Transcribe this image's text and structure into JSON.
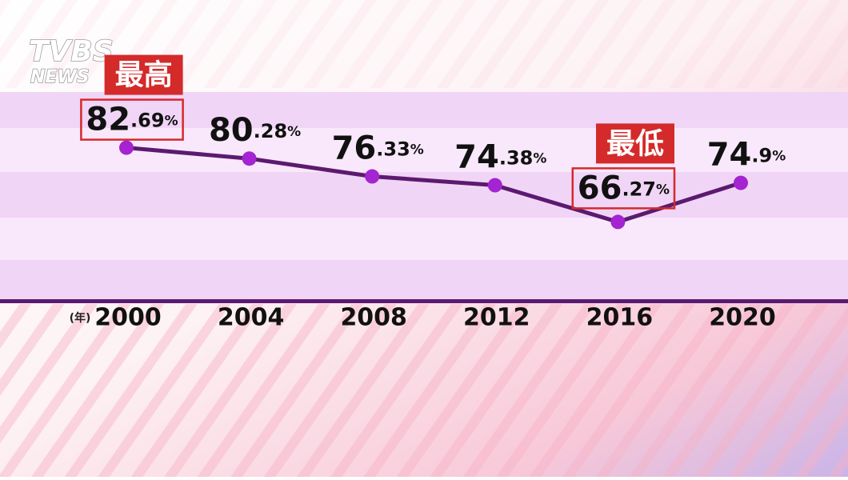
{
  "logo": {
    "top": "TVBS",
    "bottom": "NEWS"
  },
  "chart_data": {
    "type": "line",
    "x_label": "(年)",
    "categories": [
      "2000",
      "2004",
      "2008",
      "2012",
      "2016",
      "2020"
    ],
    "series": [
      {
        "color": "#5b1a6f",
        "marker_color": "#a324d0",
        "values": [
          82.69,
          80.28,
          76.33,
          74.38,
          66.27,
          74.9
        ],
        "value_labels": [
          "82.69%",
          "80.28%",
          "76.33%",
          "74.38%",
          "66.27%",
          "74.9%"
        ]
      }
    ],
    "annotations": [
      "最高",
      "最低"
    ],
    "ylim": [
      49,
      95
    ]
  }
}
